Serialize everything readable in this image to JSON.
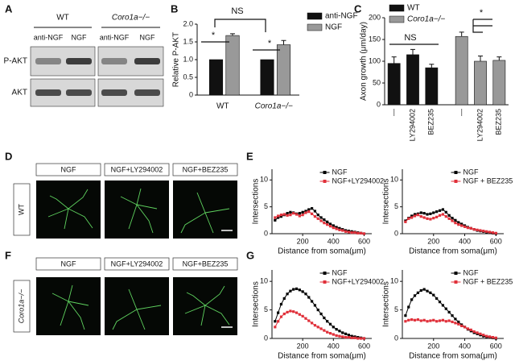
{
  "panel_labels": [
    "A",
    "B",
    "C",
    "D",
    "E",
    "F",
    "G"
  ],
  "blot": {
    "groups": [
      "WT",
      "Coro1a−/−"
    ],
    "lanes": [
      "anti-NGF",
      "NGF",
      "anti-NGF",
      "NGF"
    ],
    "rows": [
      "P-AKT",
      "AKT"
    ]
  },
  "micrographs": {
    "columns": [
      "NGF",
      "NGF+LY294002",
      "NGF+BEZ235"
    ],
    "rows": [
      "WT",
      "Coro1a−/−"
    ]
  },
  "chart_data": [
    {
      "type": "bar",
      "ylabel": "Relative P-AKT",
      "categories": [
        "WT",
        "Coro1a−/−"
      ],
      "series": [
        {
          "name": "anti-NGF",
          "color": "#111111",
          "values": [
            1.0,
            1.0
          ]
        },
        {
          "name": "NGF",
          "color": "#999999",
          "values": [
            1.68,
            1.42
          ],
          "errors": [
            0.05,
            0.12
          ]
        }
      ],
      "ylim": [
        0,
        2
      ],
      "yticks": [
        0,
        0.5,
        {
          "value": 1,
          "label": "1.0"
        },
        1.5,
        {
          "value": 2,
          "label": "2.0"
        }
      ],
      "annotations": [
        "*",
        "*",
        "NS"
      ]
    },
    {
      "type": "bar",
      "ylabel": "Axon growth (μm/day)",
      "categories": [
        "—",
        "LY294002",
        "BEZ235"
      ],
      "series": [
        {
          "name": "WT",
          "color": "#111111",
          "values": [
            95,
            115,
            85
          ],
          "errors": [
            15,
            12,
            8
          ]
        },
        {
          "name": "Coro1a−/−",
          "color": "#999999",
          "values": [
            157,
            100,
            102
          ],
          "errors": [
            10,
            12,
            8
          ]
        }
      ],
      "ylim": [
        0,
        200
      ],
      "yticks": [
        0,
        50,
        100,
        150,
        200
      ],
      "annotations": [
        "NS",
        "*"
      ]
    },
    {
      "type": "line",
      "xlabel": "Distance from soma(μm)",
      "ylabel": "Intersections",
      "x": [
        20,
        40,
        60,
        80,
        100,
        120,
        140,
        160,
        180,
        200,
        220,
        240,
        260,
        280,
        300,
        320,
        340,
        360,
        380,
        400,
        420,
        440,
        460,
        480,
        500,
        520,
        540,
        560,
        580,
        600
      ],
      "series": [
        {
          "name": "NGF",
          "color": "#000000",
          "values": [
            2.5,
            3,
            3.2,
            3.5,
            3.8,
            4,
            3.9,
            3.7,
            3.8,
            4,
            4.2,
            4.5,
            4.7,
            4.2,
            3.5,
            3,
            2.6,
            2.2,
            1.8,
            1.5,
            1.2,
            1,
            0.8,
            0.6,
            0.5,
            0.4,
            0.3,
            0.2,
            0.1,
            0
          ]
        },
        {
          "name": "NGF+LY294002",
          "color": "#e0303a",
          "values": [
            3,
            3.3,
            3.5,
            3.6,
            3.4,
            3.5,
            3.8,
            3.6,
            3.3,
            3.5,
            3.9,
            4.1,
            3.7,
            3.2,
            2.8,
            2.4,
            2,
            1.7,
            1.4,
            1.1,
            0.9,
            0.7,
            0.6,
            0.4,
            0.3,
            0.2,
            0.2,
            0.1,
            0.1,
            0
          ]
        }
      ],
      "xlim": [
        0,
        650
      ],
      "xticks": [
        200,
        400,
        600
      ],
      "ylim": [
        0,
        12
      ],
      "yticks": [
        0,
        5,
        10
      ]
    },
    {
      "type": "line",
      "xlabel": "Distance from soma(μm)",
      "ylabel": "Intersections",
      "x": [
        20,
        40,
        60,
        80,
        100,
        120,
        140,
        160,
        180,
        200,
        220,
        240,
        260,
        280,
        300,
        320,
        340,
        360,
        380,
        400,
        420,
        440,
        460,
        480,
        500,
        520,
        540,
        560,
        580,
        600
      ],
      "series": [
        {
          "name": "NGF",
          "color": "#000000",
          "values": [
            2.4,
            2.9,
            3.3,
            3.6,
            3.7,
            3.9,
            3.8,
            3.6,
            3.7,
            3.9,
            4.1,
            4.3,
            4.5,
            4,
            3.4,
            2.9,
            2.5,
            2.1,
            1.8,
            1.5,
            1.2,
            1,
            0.8,
            0.6,
            0.5,
            0.4,
            0.3,
            0.2,
            0.1,
            0
          ]
        },
        {
          "name": "NGF + BEZ235",
          "color": "#e0303a",
          "values": [
            2.2,
            2.8,
            3,
            3.3,
            3.5,
            3.2,
            3,
            2.8,
            2.7,
            2.9,
            3.1,
            3.4,
            3.6,
            3.2,
            2.8,
            2.4,
            2,
            1.7,
            1.5,
            1.3,
            1.1,
            1,
            0.8,
            0.7,
            0.6,
            0.5,
            0.4,
            0.3,
            0.2,
            0.1
          ]
        }
      ],
      "xlim": [
        0,
        650
      ],
      "xticks": [
        200,
        400,
        600
      ],
      "ylim": [
        0,
        12
      ],
      "yticks": [
        0,
        5,
        10
      ]
    },
    {
      "type": "line",
      "xlabel": "Distance from soma(μm)",
      "ylabel": "Intersections",
      "x": [
        20,
        40,
        60,
        80,
        100,
        120,
        140,
        160,
        180,
        200,
        220,
        240,
        260,
        280,
        300,
        320,
        340,
        360,
        380,
        400,
        420,
        440,
        460,
        480,
        500,
        520,
        540,
        560,
        580,
        600
      ],
      "series": [
        {
          "name": "NGF",
          "color": "#000000",
          "values": [
            3,
            4.5,
            6,
            7,
            7.8,
            8.3,
            8.6,
            8.7,
            8.5,
            8.2,
            7.8,
            7.2,
            6.5,
            5.8,
            5,
            4.3,
            3.6,
            3,
            2.5,
            2,
            1.6,
            1.3,
            1,
            0.8,
            0.6,
            0.4,
            0.3,
            0.2,
            0.1,
            0
          ]
        },
        {
          "name": "NGF+LY294002",
          "color": "#e0303a",
          "values": [
            2,
            3,
            3.8,
            4.3,
            4.6,
            4.8,
            4.7,
            4.5,
            4.2,
            3.9,
            3.5,
            3.1,
            2.7,
            2.3,
            2,
            1.7,
            1.4,
            1.1,
            0.9,
            0.7,
            0.5,
            0.4,
            0.3,
            0.2,
            0.2,
            0.1,
            0.1,
            0,
            0,
            0
          ]
        }
      ],
      "xlim": [
        0,
        650
      ],
      "xticks": [
        200,
        400,
        600
      ],
      "ylim": [
        0,
        12
      ],
      "yticks": [
        0,
        5,
        10
      ]
    },
    {
      "type": "line",
      "xlabel": "Distance from soma(μm)",
      "ylabel": "Intersections",
      "x": [
        20,
        40,
        60,
        80,
        100,
        120,
        140,
        160,
        180,
        200,
        220,
        240,
        260,
        280,
        300,
        320,
        340,
        360,
        380,
        400,
        420,
        440,
        460,
        480,
        500,
        520,
        540,
        560,
        580,
        600
      ],
      "series": [
        {
          "name": "NGF",
          "color": "#000000",
          "values": [
            4,
            5.5,
            6.8,
            7.5,
            8,
            8.4,
            8.6,
            8.3,
            8,
            7.6,
            7,
            6.4,
            5.8,
            5.2,
            4.6,
            4,
            3.4,
            2.9,
            2.4,
            2,
            1.6,
            1.3,
            1,
            0.8,
            0.6,
            0.4,
            0.3,
            0.2,
            0.1,
            0
          ]
        },
        {
          "name": "NGF + BEZ235",
          "color": "#e0303a",
          "values": [
            3,
            3.2,
            3.3,
            3.2,
            3.3,
            3.1,
            3.2,
            3,
            3.1,
            3.2,
            3,
            3.1,
            3.2,
            3,
            3.1,
            2.9,
            2.7,
            2.5,
            2.2,
            2,
            1.7,
            1.5,
            1.2,
            1,
            0.8,
            0.6,
            0.4,
            0.3,
            0.2,
            0.1
          ]
        }
      ],
      "xlim": [
        0,
        650
      ],
      "xticks": [
        200,
        400,
        600
      ],
      "ylim": [
        0,
        12
      ],
      "yticks": [
        0,
        5,
        10
      ]
    }
  ]
}
